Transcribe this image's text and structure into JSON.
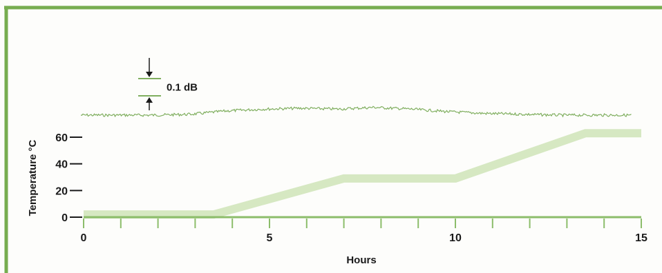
{
  "colors": {
    "frame": "#77ad50",
    "trace": "#7fae5e",
    "temperature_band": "#d6e8c2",
    "axis": "#8cbd6a",
    "text": "#1a1a1a"
  },
  "chart_data": {
    "type": "line",
    "title": "",
    "xlabel": "Hours",
    "ylabel": "Temperature °C",
    "xlim": [
      0,
      15
    ],
    "ylim": [
      0,
      60
    ],
    "x_ticks": [
      0,
      5,
      10,
      15
    ],
    "x_minor_step": 1,
    "y_ticks": [
      0,
      20,
      40,
      60
    ],
    "grid": false,
    "series": [
      {
        "role": "temperature",
        "x": [
          0,
          3.5,
          7,
          10,
          13.5,
          15
        ],
        "y": [
          2,
          2,
          29,
          29,
          63,
          63
        ]
      },
      {
        "role": "insertion-loss-trace",
        "x": [
          0,
          1,
          2,
          3,
          4,
          5,
          6,
          7,
          8,
          9,
          10,
          11,
          12,
          13,
          14,
          15
        ],
        "y_db": [
          0.0,
          0.0,
          0.0,
          0.005,
          0.025,
          0.035,
          0.04,
          0.035,
          0.045,
          0.035,
          0.02,
          0.01,
          0.005,
          0.0,
          0.0,
          0.0
        ]
      }
    ],
    "annotations": [
      {
        "type": "scale-bar",
        "label": "0.1 dB",
        "value_db": 0.1
      }
    ]
  }
}
